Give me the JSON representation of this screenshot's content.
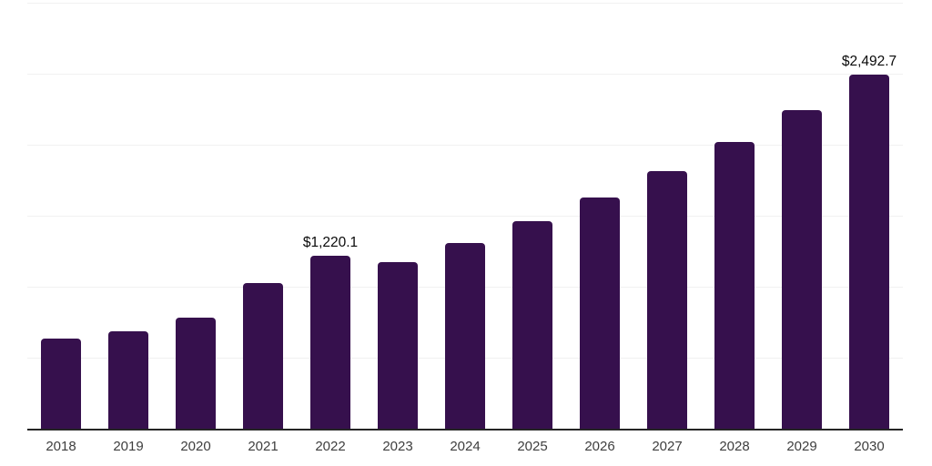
{
  "chart_data": {
    "type": "bar",
    "title": "",
    "xlabel": "",
    "ylabel": "",
    "categories": [
      "2018",
      "2019",
      "2020",
      "2021",
      "2022",
      "2023",
      "2024",
      "2025",
      "2026",
      "2027",
      "2028",
      "2029",
      "2030"
    ],
    "values": [
      637,
      686,
      780,
      1024,
      1220.1,
      1173,
      1310,
      1463,
      1631,
      1816,
      2022,
      2243,
      2492.7
    ],
    "bar_labels": [
      "",
      "",
      "",
      "",
      "$1,220.1",
      "",
      "",
      "",
      "",
      "",
      "",
      "",
      "$2,492.7"
    ],
    "ylim": [
      0,
      3000
    ],
    "gridline_step": 500,
    "grid": true,
    "legend": false,
    "y_axis_tick_labels_visible": false,
    "colors": {
      "bar": "#36104D",
      "gridline": "#F1F1F1",
      "axis_line": "#252525",
      "x_tick_label": "#3E3E3E",
      "data_label": "#0A0A0A",
      "background": "#FFFFFF"
    }
  }
}
